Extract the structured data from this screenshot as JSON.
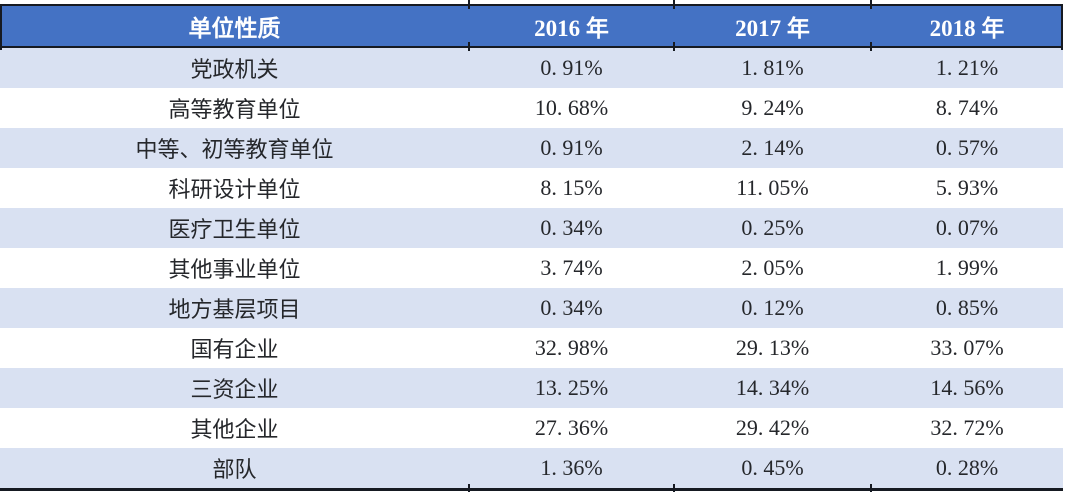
{
  "colors": {
    "header_bg": "#4472C4",
    "alt_row_bg": "#D9E1F2",
    "rule": "#161A22",
    "header_text": "#FFFFFF",
    "body_text": "#25272B"
  },
  "table": {
    "header": {
      "unit_type_label": "单位性质",
      "years": [
        "2016 年",
        "2017 年",
        "2018 年"
      ]
    },
    "rows": [
      {
        "label": "党政机关",
        "values": [
          "0. 91%",
          "1. 81%",
          "1. 21%"
        ]
      },
      {
        "label": "高等教育单位",
        "values": [
          "10. 68%",
          "9. 24%",
          "8. 74%"
        ]
      },
      {
        "label": "中等、初等教育单位",
        "values": [
          "0. 91%",
          "2. 14%",
          "0. 57%"
        ]
      },
      {
        "label": "科研设计单位",
        "values": [
          "8. 15%",
          "11. 05%",
          "5. 93%"
        ]
      },
      {
        "label": "医疗卫生单位",
        "values": [
          "0. 34%",
          "0. 25%",
          "0. 07%"
        ]
      },
      {
        "label": "其他事业单位",
        "values": [
          "3. 74%",
          "2. 05%",
          "1. 99%"
        ]
      },
      {
        "label": "地方基层项目",
        "values": [
          "0. 34%",
          "0. 12%",
          "0. 85%"
        ]
      },
      {
        "label": "国有企业",
        "values": [
          "32. 98%",
          "29. 13%",
          "33. 07%"
        ]
      },
      {
        "label": "三资企业",
        "values": [
          "13. 25%",
          "14. 34%",
          "14. 56%"
        ]
      },
      {
        "label": "其他企业",
        "values": [
          "27. 36%",
          "29. 42%",
          "32. 72%"
        ]
      },
      {
        "label": "部队",
        "values": [
          "1. 36%",
          "0. 45%",
          "0. 28%"
        ]
      }
    ]
  },
  "chart_data": {
    "type": "table",
    "columns": [
      "单位性质",
      "2016年",
      "2017年",
      "2018年"
    ],
    "unit": "%",
    "rows": [
      {
        "category": "党政机关",
        "values": [
          0.91,
          1.81,
          1.21
        ]
      },
      {
        "category": "高等教育单位",
        "values": [
          10.68,
          9.24,
          8.74
        ]
      },
      {
        "category": "中等、初等教育单位",
        "values": [
          0.91,
          2.14,
          0.57
        ]
      },
      {
        "category": "科研设计单位",
        "values": [
          8.15,
          11.05,
          5.93
        ]
      },
      {
        "category": "医疗卫生单位",
        "values": [
          0.34,
          0.25,
          0.07
        ]
      },
      {
        "category": "其他事业单位",
        "values": [
          3.74,
          2.05,
          1.99
        ]
      },
      {
        "category": "地方基层项目",
        "values": [
          0.34,
          0.12,
          0.85
        ]
      },
      {
        "category": "国有企业",
        "values": [
          32.98,
          29.13,
          33.07
        ]
      },
      {
        "category": "三资企业",
        "values": [
          13.25,
          14.34,
          14.56
        ]
      },
      {
        "category": "其他企业",
        "values": [
          27.36,
          29.42,
          32.72
        ]
      },
      {
        "category": "部队",
        "values": [
          1.36,
          0.45,
          0.28
        ]
      }
    ]
  }
}
